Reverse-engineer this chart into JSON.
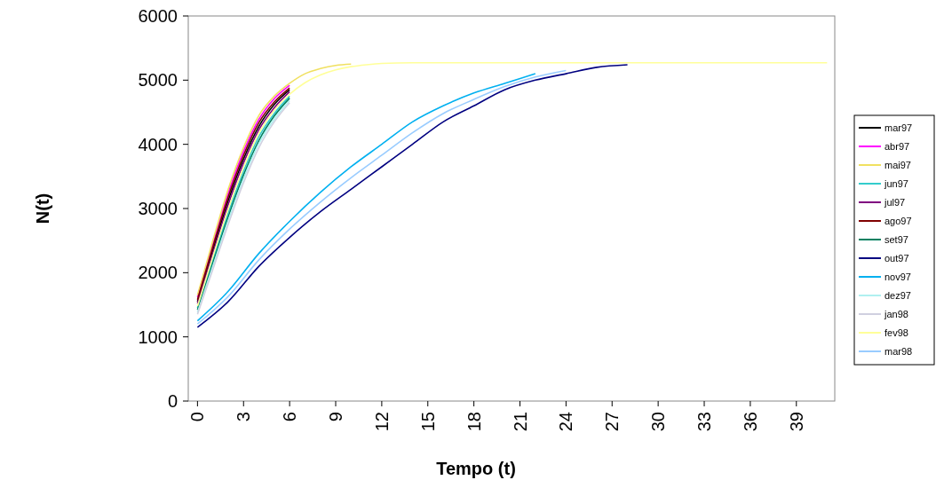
{
  "chart_data": {
    "type": "line",
    "xlabel": "Tempo (t)",
    "ylabel": "N(t)",
    "xlim": [
      -0.6,
      41.5
    ],
    "xticks": [
      0,
      3,
      6,
      9,
      12,
      15,
      18,
      21,
      24,
      27,
      30,
      33,
      36,
      39
    ],
    "ylim": [
      0,
      6000
    ],
    "yticks": [
      0,
      1000,
      2000,
      3000,
      4000,
      5000,
      6000
    ],
    "grid": false,
    "legend": "right",
    "marker": "none",
    "line_style": "solid",
    "series": [
      {
        "name": "mar97",
        "color": "#000000",
        "x": [
          0,
          1,
          2,
          3,
          4,
          5,
          6
        ],
        "values": [
          1550,
          2350,
          3120,
          3770,
          4280,
          4620,
          4850
        ]
      },
      {
        "name": "abr97",
        "color": "#ff00ff",
        "x": [
          0,
          1,
          2,
          3,
          4,
          5,
          6
        ],
        "values": [
          1620,
          2450,
          3240,
          3890,
          4390,
          4710,
          4920
        ]
      },
      {
        "name": "mai97",
        "color": "#f0e060",
        "x": [
          0,
          1,
          2,
          3,
          4,
          5,
          6,
          7,
          8,
          9,
          10
        ],
        "values": [
          1650,
          2500,
          3300,
          3950,
          4450,
          4750,
          4950,
          5100,
          5180,
          5230,
          5250
        ]
      },
      {
        "name": "jun97",
        "color": "#33cccc",
        "x": [
          0,
          1,
          2,
          3,
          4,
          5,
          6
        ],
        "values": [
          1450,
          2200,
          2930,
          3580,
          4120,
          4480,
          4750
        ]
      },
      {
        "name": "jul97",
        "color": "#800080",
        "x": [
          0,
          1,
          2,
          3,
          4,
          5,
          6
        ],
        "values": [
          1520,
          2300,
          3060,
          3710,
          4230,
          4570,
          4820
        ]
      },
      {
        "name": "ago97",
        "color": "#800000",
        "x": [
          0,
          1,
          2,
          3,
          4,
          5,
          6
        ],
        "values": [
          1580,
          2400,
          3180,
          3830,
          4340,
          4660,
          4880
        ]
      },
      {
        "name": "set97",
        "color": "#008060",
        "x": [
          0,
          1,
          2,
          3,
          4,
          5,
          6
        ],
        "values": [
          1420,
          2150,
          2870,
          3520,
          4060,
          4440,
          4720
        ]
      },
      {
        "name": "out97",
        "color": "#000080",
        "x": [
          0,
          2,
          4,
          6,
          8,
          10,
          12,
          14,
          16,
          18,
          20,
          22,
          24,
          26,
          28
        ],
        "values": [
          1150,
          1550,
          2100,
          2550,
          2950,
          3300,
          3650,
          4000,
          4350,
          4600,
          4850,
          5000,
          5100,
          5200,
          5240
        ]
      },
      {
        "name": "nov97",
        "color": "#00b0f0",
        "x": [
          0,
          2,
          4,
          6,
          8,
          10,
          12,
          14,
          16,
          18,
          20,
          22
        ],
        "values": [
          1250,
          1710,
          2300,
          2800,
          3250,
          3650,
          4000,
          4350,
          4600,
          4800,
          4950,
          5100
        ]
      },
      {
        "name": "dez97",
        "color": "#b0f0f0",
        "x": [
          0,
          1,
          2,
          3,
          4,
          5,
          6
        ],
        "values": [
          1380,
          2100,
          2810,
          3460,
          4010,
          4390,
          4680
        ]
      },
      {
        "name": "jan98",
        "color": "#d0d0e0",
        "x": [
          0,
          1,
          2,
          3,
          4,
          5,
          6
        ],
        "values": [
          1350,
          2050,
          2750,
          3400,
          3950,
          4350,
          4650
        ]
      },
      {
        "name": "fev98",
        "color": "#ffff99",
        "x": [
          0,
          1,
          2,
          3,
          4,
          5,
          6,
          7,
          8,
          9,
          10,
          11,
          12,
          14,
          41
        ],
        "values": [
          1480,
          2250,
          2990,
          3640,
          4170,
          4530,
          4780,
          4960,
          5080,
          5160,
          5210,
          5240,
          5260,
          5270,
          5270
        ]
      },
      {
        "name": "mar98",
        "color": "#99ccff",
        "x": [
          0,
          2,
          4,
          6,
          8,
          10,
          12,
          14,
          16,
          18,
          20,
          22,
          24
        ],
        "values": [
          1200,
          1630,
          2200,
          2680,
          3100,
          3480,
          3830,
          4180,
          4480,
          4700,
          4900,
          5050,
          5150
        ]
      }
    ]
  }
}
